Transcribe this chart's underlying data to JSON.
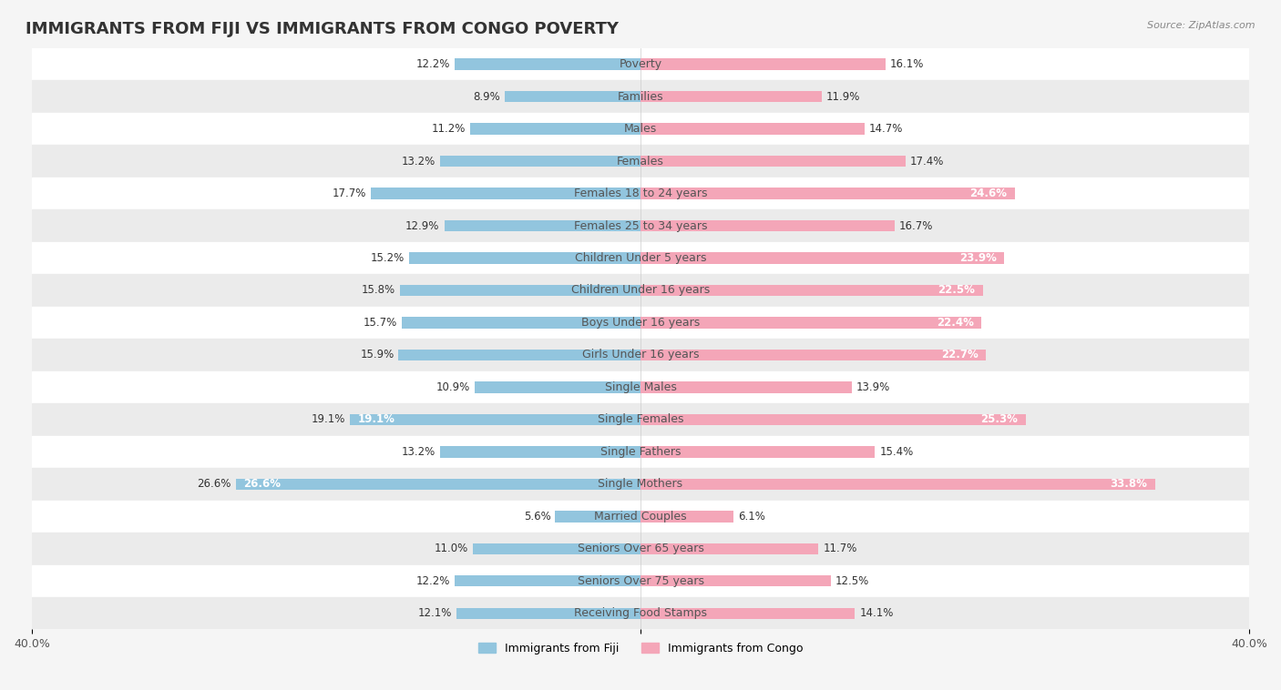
{
  "title": "IMMIGRANTS FROM FIJI VS IMMIGRANTS FROM CONGO POVERTY",
  "source": "Source: ZipAtlas.com",
  "categories": [
    "Poverty",
    "Families",
    "Males",
    "Females",
    "Females 18 to 24 years",
    "Females 25 to 34 years",
    "Children Under 5 years",
    "Children Under 16 years",
    "Boys Under 16 years",
    "Girls Under 16 years",
    "Single Males",
    "Single Females",
    "Single Fathers",
    "Single Mothers",
    "Married Couples",
    "Seniors Over 65 years",
    "Seniors Over 75 years",
    "Receiving Food Stamps"
  ],
  "fiji_values": [
    12.2,
    8.9,
    11.2,
    13.2,
    17.7,
    12.9,
    15.2,
    15.8,
    15.7,
    15.9,
    10.9,
    19.1,
    13.2,
    26.6,
    5.6,
    11.0,
    12.2,
    12.1
  ],
  "congo_values": [
    16.1,
    11.9,
    14.7,
    17.4,
    24.6,
    16.7,
    23.9,
    22.5,
    22.4,
    22.7,
    13.9,
    25.3,
    15.4,
    33.8,
    6.1,
    11.7,
    12.5,
    14.1
  ],
  "fiji_color": "#92c5de",
  "congo_color": "#f4a6b8",
  "fiji_label": "Immigrants from Fiji",
  "congo_label": "Immigrants from Congo",
  "axis_limit": 40.0,
  "bg_color": "#f5f5f5",
  "bar_row_light": "#ffffff",
  "bar_row_dark": "#ebebeb",
  "title_fontsize": 13,
  "label_fontsize": 9,
  "value_fontsize": 8.5
}
